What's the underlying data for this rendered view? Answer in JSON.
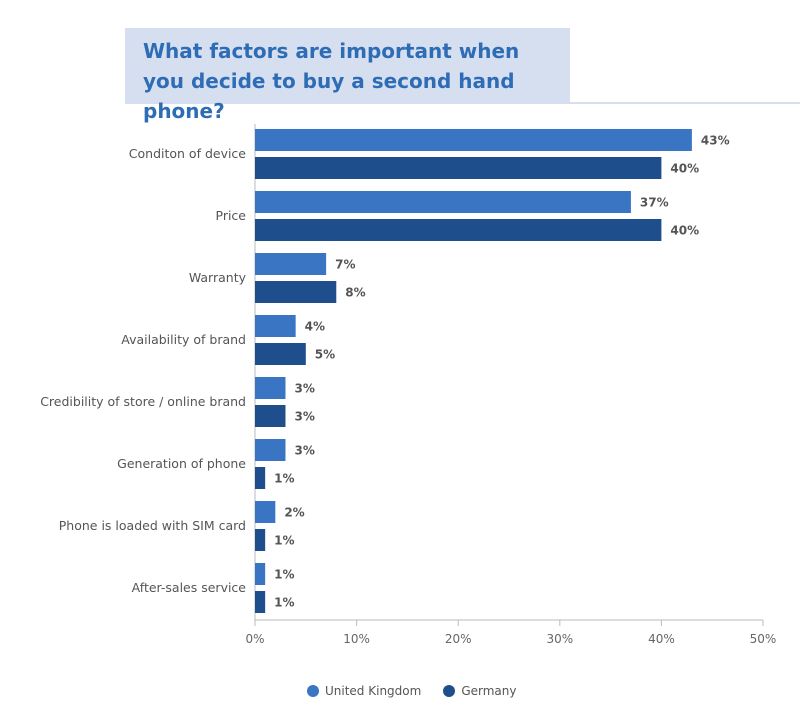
{
  "title": "What factors are important when you decide to buy a second hand phone?",
  "colors": {
    "uk": "#3a75c4",
    "de": "#1f4e8c",
    "title_bg": "#d6dff0",
    "title_text": "#2e6db5"
  },
  "chart_data": {
    "type": "bar",
    "orientation": "horizontal",
    "title": "What factors are important when you decide to buy a second hand phone?",
    "categories": [
      "Conditon of device",
      "Price",
      "Warranty",
      "Availability of brand",
      "Credibility of store / online brand",
      "Generation of phone",
      "Phone is loaded with SIM card",
      "After-sales service"
    ],
    "series": [
      {
        "name": "United Kingdom",
        "color": "#3a75c4",
        "values": [
          43,
          37,
          7,
          4,
          3,
          3,
          2,
          1
        ]
      },
      {
        "name": "Germany",
        "color": "#1f4e8c",
        "values": [
          40,
          40,
          8,
          5,
          3,
          1,
          1,
          1
        ]
      }
    ],
    "value_suffix": "%",
    "xlim": [
      0,
      50
    ],
    "xticks": [
      0,
      10,
      20,
      30,
      40,
      50
    ],
    "xtick_labels": [
      "0%",
      "10%",
      "20%",
      "30%",
      "40%",
      "50%"
    ],
    "grid": false,
    "legend_position": "bottom"
  }
}
